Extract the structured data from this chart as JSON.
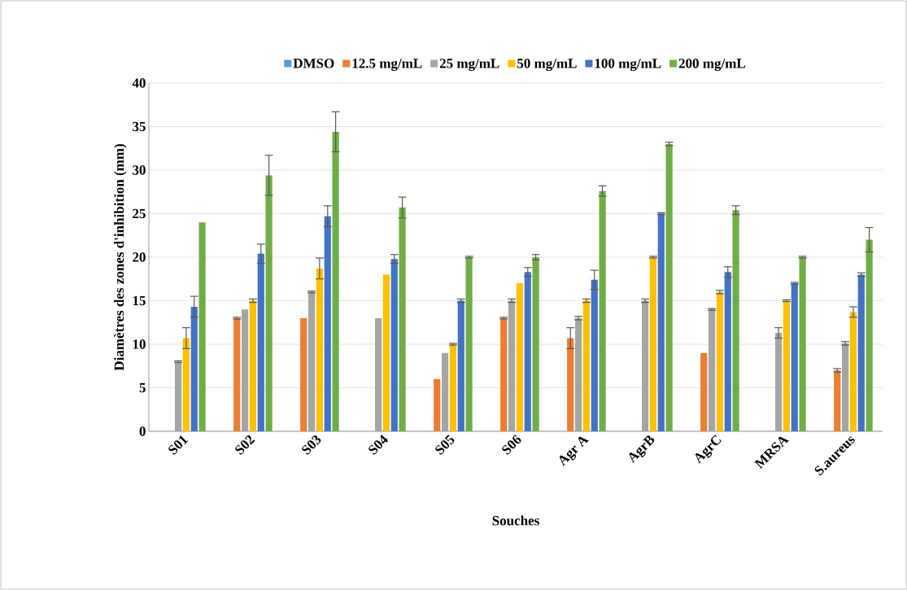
{
  "chart_data": {
    "type": "bar",
    "xlabel": "Souches",
    "ylabel": "Diamètres des zones d'inhibition (mm)",
    "categories": [
      "S01",
      "S02",
      "S03",
      "S04",
      "S05",
      "S06",
      "Agr A",
      "AgrB",
      "AgrC",
      "MRSA",
      "S.aureus"
    ],
    "series": [
      {
        "name": "DMSO",
        "color": "#5b9bd5",
        "values": [
          0,
          0,
          0,
          0,
          0,
          0,
          0,
          0,
          0,
          0,
          0
        ]
      },
      {
        "name": "12.5 mg/mL",
        "color": "#ed7d31",
        "values": [
          0,
          13,
          13,
          0,
          6,
          13,
          10.7,
          0,
          9,
          0,
          7
        ],
        "errors": [
          null,
          0.1,
          null,
          null,
          null,
          0.1,
          1.2,
          null,
          null,
          null,
          0.2
        ]
      },
      {
        "name": "25 mg/mL",
        "color": "#a5a5a5",
        "values": [
          8,
          14,
          16,
          13,
          9,
          15,
          13,
          15,
          14,
          11.3,
          10.1
        ],
        "errors": [
          0.1,
          null,
          0.1,
          null,
          null,
          0.2,
          0.2,
          0.2,
          0.1,
          0.6,
          0.2
        ]
      },
      {
        "name": "50 mg/mL",
        "color": "#ffc000",
        "values": [
          10.7,
          15,
          18.7,
          18,
          10,
          17,
          15,
          20,
          16,
          15,
          13.7
        ],
        "errors": [
          1.2,
          0.2,
          1.2,
          null,
          0.1,
          null,
          0.2,
          0.1,
          0.2,
          0.1,
          0.6
        ]
      },
      {
        "name": "100 mg/mL",
        "color": "#4472c4",
        "values": [
          14.3,
          20.4,
          24.7,
          19.8,
          15,
          18.3,
          17.4,
          25,
          18.3,
          17,
          18
        ],
        "errors": [
          1.2,
          1.1,
          1.2,
          0.5,
          0.2,
          0.5,
          1.1,
          0.1,
          0.6,
          0.1,
          0.2
        ]
      },
      {
        "name": "200 mg/mL",
        "color": "#70ad47",
        "values": [
          24,
          29.4,
          34.4,
          25.7,
          20,
          20,
          27.6,
          33,
          25.4,
          20,
          22
        ],
        "errors": [
          null,
          2.3,
          2.3,
          1.2,
          0.1,
          0.3,
          0.6,
          0.2,
          0.5,
          0.1,
          1.4
        ]
      }
    ],
    "ylim": [
      0,
      40
    ],
    "yticks": [
      0,
      5,
      10,
      15,
      20,
      25,
      30,
      35,
      40
    ],
    "grid": "y",
    "legend": "top"
  }
}
